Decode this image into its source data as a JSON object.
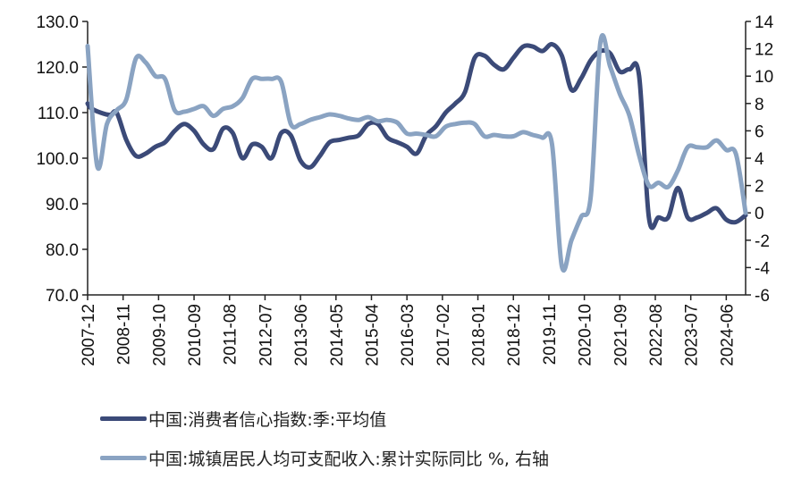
{
  "chart_data": {
    "type": "line",
    "x_tick_labels": [
      "2007-12",
      "2008-11",
      "2009-10",
      "2010-09",
      "2011-08",
      "2012-07",
      "2013-06",
      "2014-05",
      "2015-04",
      "2016-03",
      "2017-02",
      "2018-01",
      "2018-12",
      "2019-11",
      "2020-10",
      "2021-09",
      "2022-08",
      "2023-07",
      "2024-06"
    ],
    "left_axis": {
      "ylim": [
        70,
        130
      ],
      "tick_labels": [
        "130.0",
        "120.0",
        "110.0",
        "100.0",
        "90.0",
        "80.0",
        "70.0"
      ]
    },
    "right_axis": {
      "ylim": [
        -6,
        14
      ],
      "tick_labels": [
        "14",
        "12",
        "10",
        "8",
        "6",
        "4",
        "2",
        "0",
        "-2",
        "-4",
        "-6"
      ]
    },
    "x_range": [
      "2007-12",
      "2024-12"
    ],
    "grid": false,
    "legend_position": "bottom",
    "series": [
      {
        "name": "中国:消费者信心指数:季:平均值",
        "axis": "left",
        "color": "#3b4a78",
        "points": [
          [
            "2007-12",
            112.0
          ],
          [
            "2008-01",
            111.0
          ],
          [
            "2008-04",
            110.0
          ],
          [
            "2008-07",
            109.5
          ],
          [
            "2008-09",
            110.0
          ],
          [
            "2008-12",
            104.0
          ],
          [
            "2009-03",
            100.5
          ],
          [
            "2009-06",
            101.0
          ],
          [
            "2009-09",
            102.5
          ],
          [
            "2009-12",
            103.5
          ],
          [
            "2010-03",
            106.0
          ],
          [
            "2010-06",
            107.5
          ],
          [
            "2010-09",
            106.0
          ],
          [
            "2010-12",
            103.0
          ],
          [
            "2011-03",
            102.0
          ],
          [
            "2011-06",
            106.5
          ],
          [
            "2011-09",
            105.5
          ],
          [
            "2011-12",
            100.0
          ],
          [
            "2012-03",
            103.0
          ],
          [
            "2012-06",
            102.5
          ],
          [
            "2012-09",
            100.0
          ],
          [
            "2012-12",
            105.5
          ],
          [
            "2013-03",
            105.0
          ],
          [
            "2013-06",
            99.5
          ],
          [
            "2013-09",
            98.0
          ],
          [
            "2013-12",
            100.5
          ],
          [
            "2014-03",
            103.5
          ],
          [
            "2014-06",
            104.0
          ],
          [
            "2014-09",
            104.5
          ],
          [
            "2014-12",
            105.0
          ],
          [
            "2015-03",
            107.5
          ],
          [
            "2015-06",
            107.5
          ],
          [
            "2015-09",
            104.5
          ],
          [
            "2015-12",
            103.5
          ],
          [
            "2016-03",
            102.5
          ],
          [
            "2016-06",
            101.0
          ],
          [
            "2016-09",
            105.0
          ],
          [
            "2016-12",
            107.0
          ],
          [
            "2017-03",
            110.0
          ],
          [
            "2017-06",
            112.0
          ],
          [
            "2017-09",
            114.5
          ],
          [
            "2017-12",
            122.0
          ],
          [
            "2018-03",
            122.5
          ],
          [
            "2018-06",
            120.5
          ],
          [
            "2018-09",
            119.5
          ],
          [
            "2018-12",
            122.0
          ],
          [
            "2019-03",
            124.5
          ],
          [
            "2019-06",
            124.5
          ],
          [
            "2019-09",
            123.5
          ],
          [
            "2019-12",
            125.0
          ],
          [
            "2020-03",
            122.5
          ],
          [
            "2020-06",
            115.0
          ],
          [
            "2020-09",
            117.5
          ],
          [
            "2020-12",
            121.5
          ],
          [
            "2021-03",
            123.5
          ],
          [
            "2021-06",
            123.0
          ],
          [
            "2021-09",
            119.0
          ],
          [
            "2021-12",
            119.5
          ],
          [
            "2022-03",
            118.0
          ],
          [
            "2022-06",
            87.0
          ],
          [
            "2022-09",
            87.0
          ],
          [
            "2022-12",
            87.0
          ],
          [
            "2023-03",
            93.5
          ],
          [
            "2023-06",
            87.0
          ],
          [
            "2023-09",
            87.0
          ],
          [
            "2023-12",
            88.0
          ],
          [
            "2024-03",
            89.0
          ],
          [
            "2024-06",
            86.5
          ],
          [
            "2024-09",
            86.0
          ],
          [
            "2024-12",
            87.5
          ]
        ]
      },
      {
        "name": "中国:城镇居民人均可支配收入:累计实际同比 %, 右轴",
        "axis": "right",
        "color": "#8aa3c2",
        "points": [
          [
            "2007-12",
            12.2
          ],
          [
            "2008-03",
            3.4
          ],
          [
            "2008-06",
            6.5
          ],
          [
            "2008-09",
            7.5
          ],
          [
            "2008-12",
            8.3
          ],
          [
            "2009-03",
            11.3
          ],
          [
            "2009-06",
            11.0
          ],
          [
            "2009-09",
            10.0
          ],
          [
            "2009-12",
            9.8
          ],
          [
            "2010-03",
            7.5
          ],
          [
            "2010-06",
            7.4
          ],
          [
            "2010-09",
            7.6
          ],
          [
            "2010-12",
            7.8
          ],
          [
            "2011-03",
            7.1
          ],
          [
            "2011-06",
            7.6
          ],
          [
            "2011-09",
            7.8
          ],
          [
            "2011-12",
            8.4
          ],
          [
            "2012-03",
            9.8
          ],
          [
            "2012-06",
            9.8
          ],
          [
            "2012-09",
            9.8
          ],
          [
            "2012-12",
            9.6
          ],
          [
            "2013-03",
            6.5
          ],
          [
            "2013-06",
            6.5
          ],
          [
            "2013-09",
            6.8
          ],
          [
            "2013-12",
            7.0
          ],
          [
            "2014-03",
            7.2
          ],
          [
            "2014-06",
            7.1
          ],
          [
            "2014-09",
            6.9
          ],
          [
            "2014-12",
            6.8
          ],
          [
            "2015-03",
            7.0
          ],
          [
            "2015-06",
            6.7
          ],
          [
            "2015-09",
            6.8
          ],
          [
            "2015-12",
            6.6
          ],
          [
            "2016-03",
            5.8
          ],
          [
            "2016-06",
            5.8
          ],
          [
            "2016-09",
            5.7
          ],
          [
            "2016-12",
            5.6
          ],
          [
            "2017-03",
            6.3
          ],
          [
            "2017-06",
            6.5
          ],
          [
            "2017-09",
            6.6
          ],
          [
            "2017-12",
            6.5
          ],
          [
            "2018-03",
            5.6
          ],
          [
            "2018-06",
            5.7
          ],
          [
            "2018-09",
            5.6
          ],
          [
            "2018-12",
            5.6
          ],
          [
            "2019-03",
            5.9
          ],
          [
            "2019-06",
            5.7
          ],
          [
            "2019-09",
            5.5
          ],
          [
            "2019-12",
            5.0
          ],
          [
            "2020-03",
            -3.9
          ],
          [
            "2020-06",
            -2.0
          ],
          [
            "2020-09",
            -0.3
          ],
          [
            "2020-12",
            1.2
          ],
          [
            "2021-03",
            12.5
          ],
          [
            "2021-06",
            10.7
          ],
          [
            "2021-09",
            8.7
          ],
          [
            "2021-12",
            7.1
          ],
          [
            "2022-03",
            4.2
          ],
          [
            "2022-06",
            2.0
          ],
          [
            "2022-09",
            2.2
          ],
          [
            "2022-12",
            1.9
          ],
          [
            "2023-03",
            3.1
          ],
          [
            "2023-06",
            4.8
          ],
          [
            "2023-09",
            4.8
          ],
          [
            "2023-12",
            4.8
          ],
          [
            "2024-03",
            5.3
          ],
          [
            "2024-06",
            4.6
          ],
          [
            "2024-09",
            4.3
          ],
          [
            "2024-12",
            0.0
          ]
        ]
      }
    ]
  }
}
